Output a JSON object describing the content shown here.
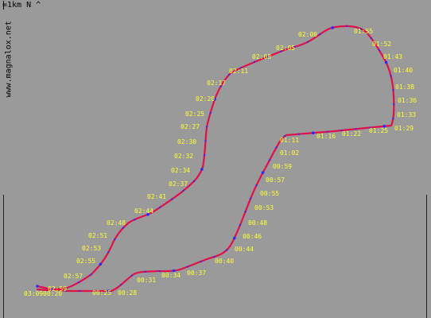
{
  "map": {
    "scale_label": "=1km N ^",
    "watermark": "www.magnalox.net",
    "colors": {
      "background": "#9a9a9a",
      "track": "#e0104a",
      "track_dots": "#2a2aff",
      "labels": "#ffff33",
      "text": "#000000"
    },
    "time_labels": [
      "00:25",
      "00:28",
      "00:31",
      "00:34",
      "00:37",
      "00:40",
      "00:44",
      "00:46",
      "00:48",
      "00:53",
      "00:55",
      "00:57",
      "00:59",
      "01:02",
      "01:11",
      "01:16",
      "01:22",
      "01:25",
      "01:29",
      "01:33",
      "01:36",
      "01:38",
      "01:40",
      "01:43",
      "01:52",
      "01:55",
      "02:00",
      "02:05",
      "02:08",
      "02:11",
      "02:17",
      "02:20",
      "02:25",
      "02:27",
      "02:30",
      "02:32",
      "02:34",
      "02:37",
      "02:41",
      "02:44",
      "02:48",
      "02:51",
      "02:53",
      "02:55",
      "02:57",
      "02:59",
      "03:09",
      "00:20"
    ]
  }
}
